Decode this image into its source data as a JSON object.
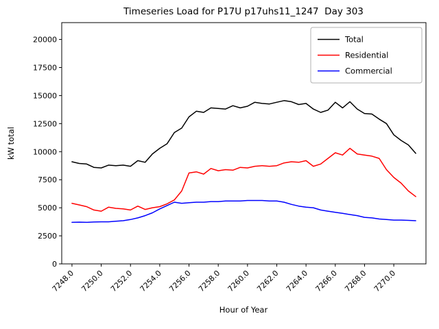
{
  "chart_data": {
    "type": "line",
    "title": "Timeseries Load for P17U p17uhs11_1247  Day 303",
    "xlabel": "Hour of Year",
    "ylabel": "kW total",
    "xlim": [
      7247.3,
      7272.2
    ],
    "ylim": [
      0,
      21500
    ],
    "grid": false,
    "legend_position": "upper right",
    "xticks": [
      7248,
      7250,
      7252,
      7254,
      7256,
      7258,
      7260,
      7262,
      7264,
      7266,
      7268,
      7270
    ],
    "xtick_labels": [
      "7248.0",
      "7250.0",
      "7252.0",
      "7254.0",
      "7256.0",
      "7258.0",
      "7260.0",
      "7262.0",
      "7264.0",
      "7266.0",
      "7268.0",
      "7270.0"
    ],
    "yticks": [
      0,
      2500,
      5000,
      7500,
      10000,
      12500,
      15000,
      17500,
      20000
    ],
    "ytick_labels": [
      "0",
      "2500",
      "5000",
      "7500",
      "10000",
      "12500",
      "15000",
      "17500",
      "20000"
    ],
    "x": [
      7248.0,
      7248.5,
      7249.0,
      7249.5,
      7250.0,
      7250.5,
      7251.0,
      7251.5,
      7252.0,
      7252.5,
      7253.0,
      7253.5,
      7254.0,
      7254.5,
      7255.0,
      7255.5,
      7256.0,
      7256.5,
      7257.0,
      7257.5,
      7258.0,
      7258.5,
      7259.0,
      7259.5,
      7260.0,
      7260.5,
      7261.0,
      7261.5,
      7262.0,
      7262.5,
      7263.0,
      7263.5,
      7264.0,
      7264.5,
      7265.0,
      7265.5,
      7266.0,
      7266.5,
      7267.0,
      7267.5,
      7268.0,
      7268.5,
      7269.0,
      7269.5,
      7270.0,
      7270.5,
      7271.0,
      7271.5
    ],
    "series": [
      {
        "name": "Total",
        "color": "#000000",
        "values": [
          9100,
          8950,
          8900,
          8600,
          8550,
          8800,
          8750,
          8800,
          8700,
          9200,
          9050,
          9800,
          10300,
          10700,
          11700,
          12100,
          13100,
          13600,
          13500,
          13900,
          13850,
          13800,
          14100,
          13900,
          14050,
          14400,
          14300,
          14250,
          14400,
          14550,
          14450,
          14200,
          14300,
          13800,
          13500,
          13700,
          14400,
          13900,
          14450,
          13800,
          13400,
          13350,
          12900,
          12500,
          11500,
          11000,
          10600,
          9850
        ]
      },
      {
        "name": "Residential",
        "color": "#ff0000",
        "values": [
          5400,
          5250,
          5100,
          4800,
          4700,
          5050,
          4950,
          4900,
          4800,
          5150,
          4850,
          5000,
          5100,
          5350,
          5700,
          6500,
          8100,
          8200,
          8000,
          8500,
          8300,
          8400,
          8350,
          8600,
          8550,
          8700,
          8750,
          8700,
          8750,
          9000,
          9100,
          9050,
          9200,
          8700,
          8900,
          9400,
          9900,
          9700,
          10300,
          9800,
          9700,
          9600,
          9400,
          8400,
          7700,
          7200,
          6500,
          6000
        ]
      },
      {
        "name": "Commercial",
        "color": "#0000ff",
        "values": [
          3700,
          3720,
          3700,
          3730,
          3750,
          3750,
          3800,
          3850,
          3950,
          4100,
          4300,
          4550,
          4900,
          5200,
          5500,
          5400,
          5450,
          5500,
          5500,
          5550,
          5550,
          5600,
          5600,
          5600,
          5650,
          5650,
          5650,
          5600,
          5600,
          5500,
          5300,
          5150,
          5050,
          5000,
          4800,
          4700,
          4600,
          4500,
          4400,
          4300,
          4150,
          4100,
          4000,
          3950,
          3900,
          3900,
          3880,
          3850
        ]
      }
    ]
  }
}
